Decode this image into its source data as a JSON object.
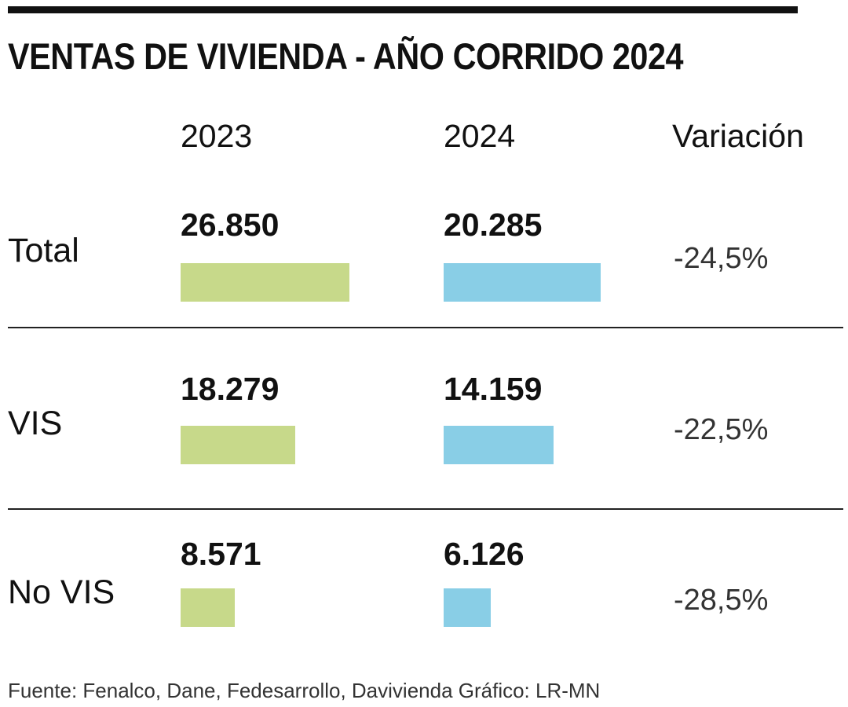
{
  "title": "VENTAS DE VIVIENDA - AÑO CORRIDO 2024",
  "footer": "Fuente: Fenalco, Dane, Fedesarrollo, Davivienda   Gráfico: LR-MN",
  "chart_data": {
    "type": "bar",
    "title": "VENTAS DE VIVIENDA - AÑO CORRIDO 2024",
    "orientation": "horizontal",
    "columns": [
      "2023",
      "2024",
      "Variación"
    ],
    "categories": [
      "Total",
      "VIS",
      "No VIS"
    ],
    "series": [
      {
        "name": "2023",
        "values": [
          26850,
          18279,
          8571
        ],
        "labels": [
          "26.850",
          "18.279",
          "8.571"
        ],
        "color": "#c7d98a"
      },
      {
        "name": "2024",
        "values": [
          20285,
          14159,
          6126
        ],
        "labels": [
          "20.285",
          "14.159",
          "6.126"
        ],
        "color": "#89cee6"
      }
    ],
    "variation": [
      -24.5,
      -22.5,
      -28.5
    ],
    "variation_labels": [
      "-24,5%",
      "-22,5%",
      "-28,5%"
    ],
    "grid": false
  }
}
